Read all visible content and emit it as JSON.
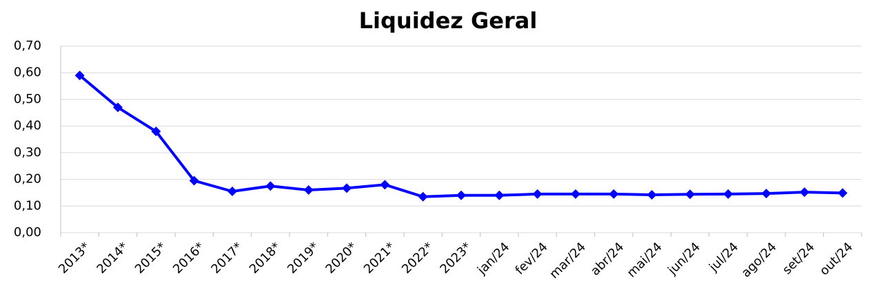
{
  "chart_data": {
    "type": "line",
    "title": "Liquidez Geral",
    "categories": [
      "2013*",
      "2014*",
      "2015*",
      "2016*",
      "2017*",
      "2018*",
      "2019*",
      "2020*",
      "2021*",
      "2022*",
      "2023*",
      "jan/24",
      "fev/24",
      "mar/24",
      "abr/24",
      "mai/24",
      "jun/24",
      "jul/24",
      "ago/24",
      "set/24",
      "out/24"
    ],
    "series": [
      {
        "name": "Liquidez Geral",
        "color": "#0000ff",
        "values": [
          0.59,
          0.47,
          0.38,
          0.195,
          0.155,
          0.175,
          0.16,
          0.167,
          0.18,
          0.135,
          0.14,
          0.14,
          0.145,
          0.145,
          0.145,
          0.142,
          0.144,
          0.145,
          0.147,
          0.152,
          0.149
        ]
      }
    ],
    "ylim": [
      0,
      0.7
    ],
    "yticks": [
      {
        "value": 0,
        "label": "0,00"
      },
      {
        "value": 0.1,
        "label": "0,10"
      },
      {
        "value": 0.2,
        "label": "0,20"
      },
      {
        "value": 0.3,
        "label": "0,30"
      },
      {
        "value": 0.4,
        "label": "0,40"
      },
      {
        "value": 0.5,
        "label": "0,50"
      },
      {
        "value": 0.6,
        "label": "0,60"
      },
      {
        "value": 0.7,
        "label": "0,70"
      }
    ],
    "grid": true
  }
}
